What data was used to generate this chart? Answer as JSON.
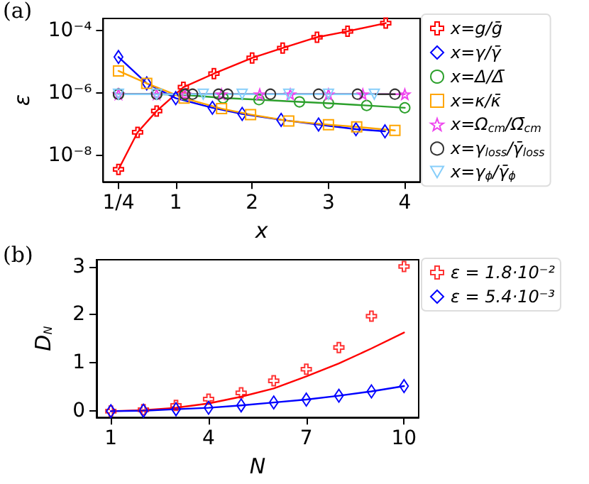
{
  "chart_data": [
    {
      "type": "line",
      "annotations": [
        "(a)"
      ],
      "xlabel": "x",
      "ylabel": "ε",
      "log": "y",
      "xlim": [
        0.05,
        4.2
      ],
      "xticks": [
        {
          "value": 0.25,
          "label": "1/4"
        },
        1,
        2,
        3,
        4
      ],
      "ylim": [
        1.4e-09,
        0.00024
      ],
      "yticks": [
        {
          "value": 1e-08,
          "label": "10⁻⁸"
        },
        {
          "value": 1e-06,
          "label": "10⁻⁶"
        },
        {
          "value": 0.0001,
          "label": "10⁻⁴"
        }
      ],
      "legend": "right",
      "grid": false,
      "line_style": "solid",
      "series": [
        {
          "name": "x=g/ḡ",
          "color": "#ff0000",
          "marker": "cross",
          "x": [
            0.25,
            0.5,
            0.75,
            1.1,
            1.5,
            2.0,
            2.4,
            2.85,
            3.25,
            3.75
          ],
          "values": [
            3.5e-09,
            5.4e-08,
            2.6e-07,
            1.5e-06,
            4.1e-06,
            1.3e-05,
            2.7e-05,
            6e-05,
            9.3e-05,
            0.00017
          ]
        },
        {
          "name": "x=γ/γ̄",
          "color": "#0000ff",
          "marker": "diamond",
          "x": [
            0.25,
            0.62,
            1.0,
            1.48,
            1.87,
            2.38,
            2.87,
            3.36,
            3.74
          ],
          "values": [
            1.4e-05,
            2e-06,
            6.7e-07,
            3.3e-07,
            2.1e-07,
            1.35e-07,
            9.6e-08,
            6.8e-08,
            5.8e-08
          ]
        },
        {
          "name": "x=Δ/Δ̄",
          "color": "#2ca02c",
          "marker": "circle",
          "x": [
            0.25,
            0.75,
            1.12,
            1.62,
            2.09,
            2.62,
            3.0,
            3.5,
            4.0
          ],
          "values": [
            9e-07,
            9e-07,
            8.5e-07,
            6.8e-07,
            6e-07,
            5.1e-07,
            4.6e-07,
            3.9e-07,
            3.3e-07
          ]
        },
        {
          "name": "x=κ/κ̄",
          "color": "#ffa500",
          "marker": "square",
          "x": [
            0.25,
            0.62,
            1.11,
            1.6,
            1.98,
            2.48,
            3.0,
            3.37,
            3.87
          ],
          "values": [
            5e-06,
            2e-06,
            6.7e-07,
            3.1e-07,
            2e-07,
            1.25e-07,
            9.5e-08,
            8.1e-08,
            6.2e-08
          ]
        },
        {
          "name": "x=Ω$_{cm}$/Ω̄$_{cm}$",
          "color": "#ee44ee",
          "marker": "star",
          "x": [
            0.25,
            0.75,
            1.12,
            1.6,
            2.1,
            2.5,
            3.0,
            3.45,
            4.0
          ],
          "values": [
            9e-07,
            9e-07,
            9e-07,
            9e-07,
            9e-07,
            9e-07,
            9e-07,
            9e-07,
            9e-07
          ]
        },
        {
          "name": "x=γ$_{loss}$/γ̄$_{loss}$",
          "color": "#333333",
          "marker": "circle",
          "x": [
            0.25,
            0.75,
            1.12,
            1.22,
            1.56,
            1.68,
            2.24,
            2.87,
            3.38,
            3.87
          ],
          "values": [
            9e-07,
            9e-07,
            9e-07,
            9e-07,
            9e-07,
            9e-07,
            9e-07,
            9e-07,
            9e-07,
            9e-07
          ]
        },
        {
          "name": "x=γ$_{ϕ}$/γ̄$_{ϕ}$",
          "color": "#87cefa",
          "marker": "triangle",
          "x": [
            0.25,
            0.75,
            1.36,
            1.87,
            2.48,
            3.0,
            3.6
          ],
          "values": [
            9e-07,
            9e-07,
            9e-07,
            9e-07,
            9e-07,
            9e-07,
            9e-07
          ]
        }
      ]
    },
    {
      "type": "line",
      "annotations": [
        "(b)"
      ],
      "xlabel": "N",
      "ylabel": "D$_{N}$",
      "xlim": [
        0.56,
        10.45
      ],
      "xticks": [
        1,
        4,
        7,
        10
      ],
      "ylim": [
        -0.13,
        3.14
      ],
      "yticks": [
        0,
        1,
        2,
        3
      ],
      "legend": "right",
      "grid": false,
      "series": [
        {
          "name": "ε = 1.8·10⁻²",
          "type": "scatter",
          "color": "#ff0000",
          "marker": "cross",
          "x": [
            1,
            2,
            3,
            4,
            5,
            6,
            7,
            8,
            9,
            10
          ],
          "values": [
            0.0,
            0.03,
            0.12,
            0.25,
            0.38,
            0.63,
            0.87,
            1.32,
            1.97,
            3.0
          ]
        },
        {
          "type": "line",
          "color": "#ff0000",
          "marker": "none",
          "line_style": "solid",
          "x": [
            1,
            2,
            3,
            4,
            5,
            6,
            7,
            8,
            9,
            10
          ],
          "values": [
            0.0,
            0.02,
            0.07,
            0.16,
            0.3,
            0.47,
            0.72,
            0.99,
            1.3,
            1.63
          ]
        },
        {
          "name": "ε = 5.4·10⁻³",
          "type": "line",
          "line_style": "solid",
          "color": "#0000ff",
          "marker": "diamond",
          "x": [
            1,
            2,
            3,
            4,
            5,
            6,
            7,
            8,
            9,
            10
          ],
          "values": [
            0.0,
            0.01,
            0.04,
            0.07,
            0.12,
            0.18,
            0.24,
            0.32,
            0.41,
            0.52
          ]
        }
      ]
    }
  ]
}
